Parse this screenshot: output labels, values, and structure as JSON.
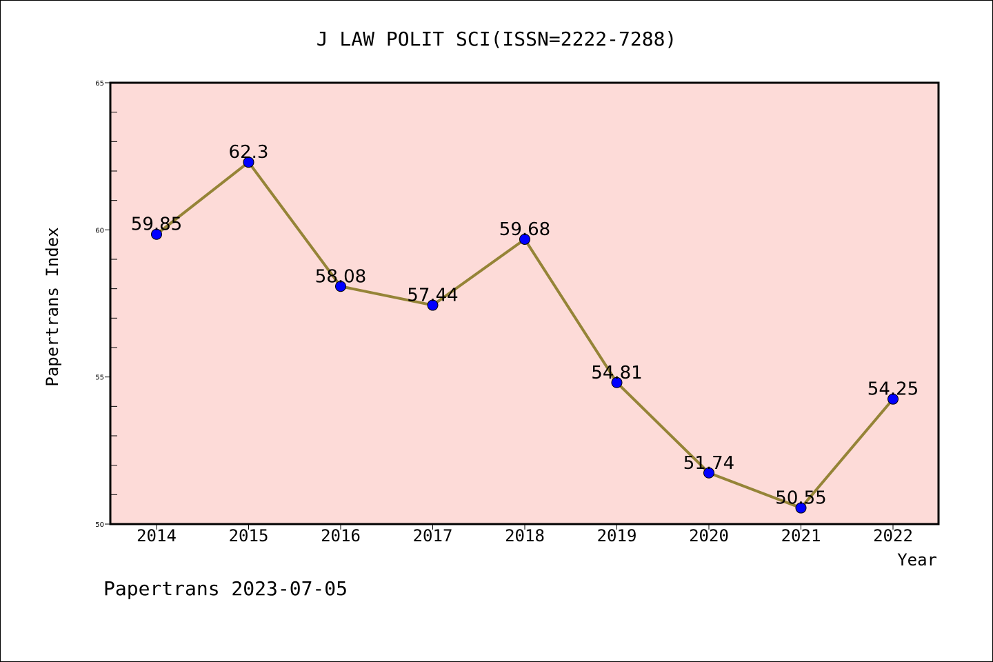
{
  "chart_data": {
    "type": "line",
    "title": "J LAW POLIT SCI(ISSN=2222-7288)",
    "xlabel": "Year",
    "ylabel": "Papertrans Index",
    "categories": [
      "2014",
      "2015",
      "2016",
      "2017",
      "2018",
      "2019",
      "2020",
      "2021",
      "2022"
    ],
    "series": [
      {
        "values": [
          59.85,
          62.3,
          58.08,
          57.44,
          59.68,
          54.81,
          51.74,
          50.55,
          54.25
        ],
        "labels": [
          "59.85",
          "62.3",
          "58.08",
          "57.44",
          "59.68",
          "54.81",
          "51.74",
          "50.55",
          "54.25"
        ]
      }
    ],
    "ylim": [
      50,
      65
    ],
    "yticks": [
      "50",
      "55",
      "60",
      "65"
    ],
    "grid": false,
    "colors": {
      "plot_background": "#fddbd8",
      "line": "#958437",
      "marker": "#0000ff"
    }
  },
  "footer": "Papertrans 2023-07-05"
}
